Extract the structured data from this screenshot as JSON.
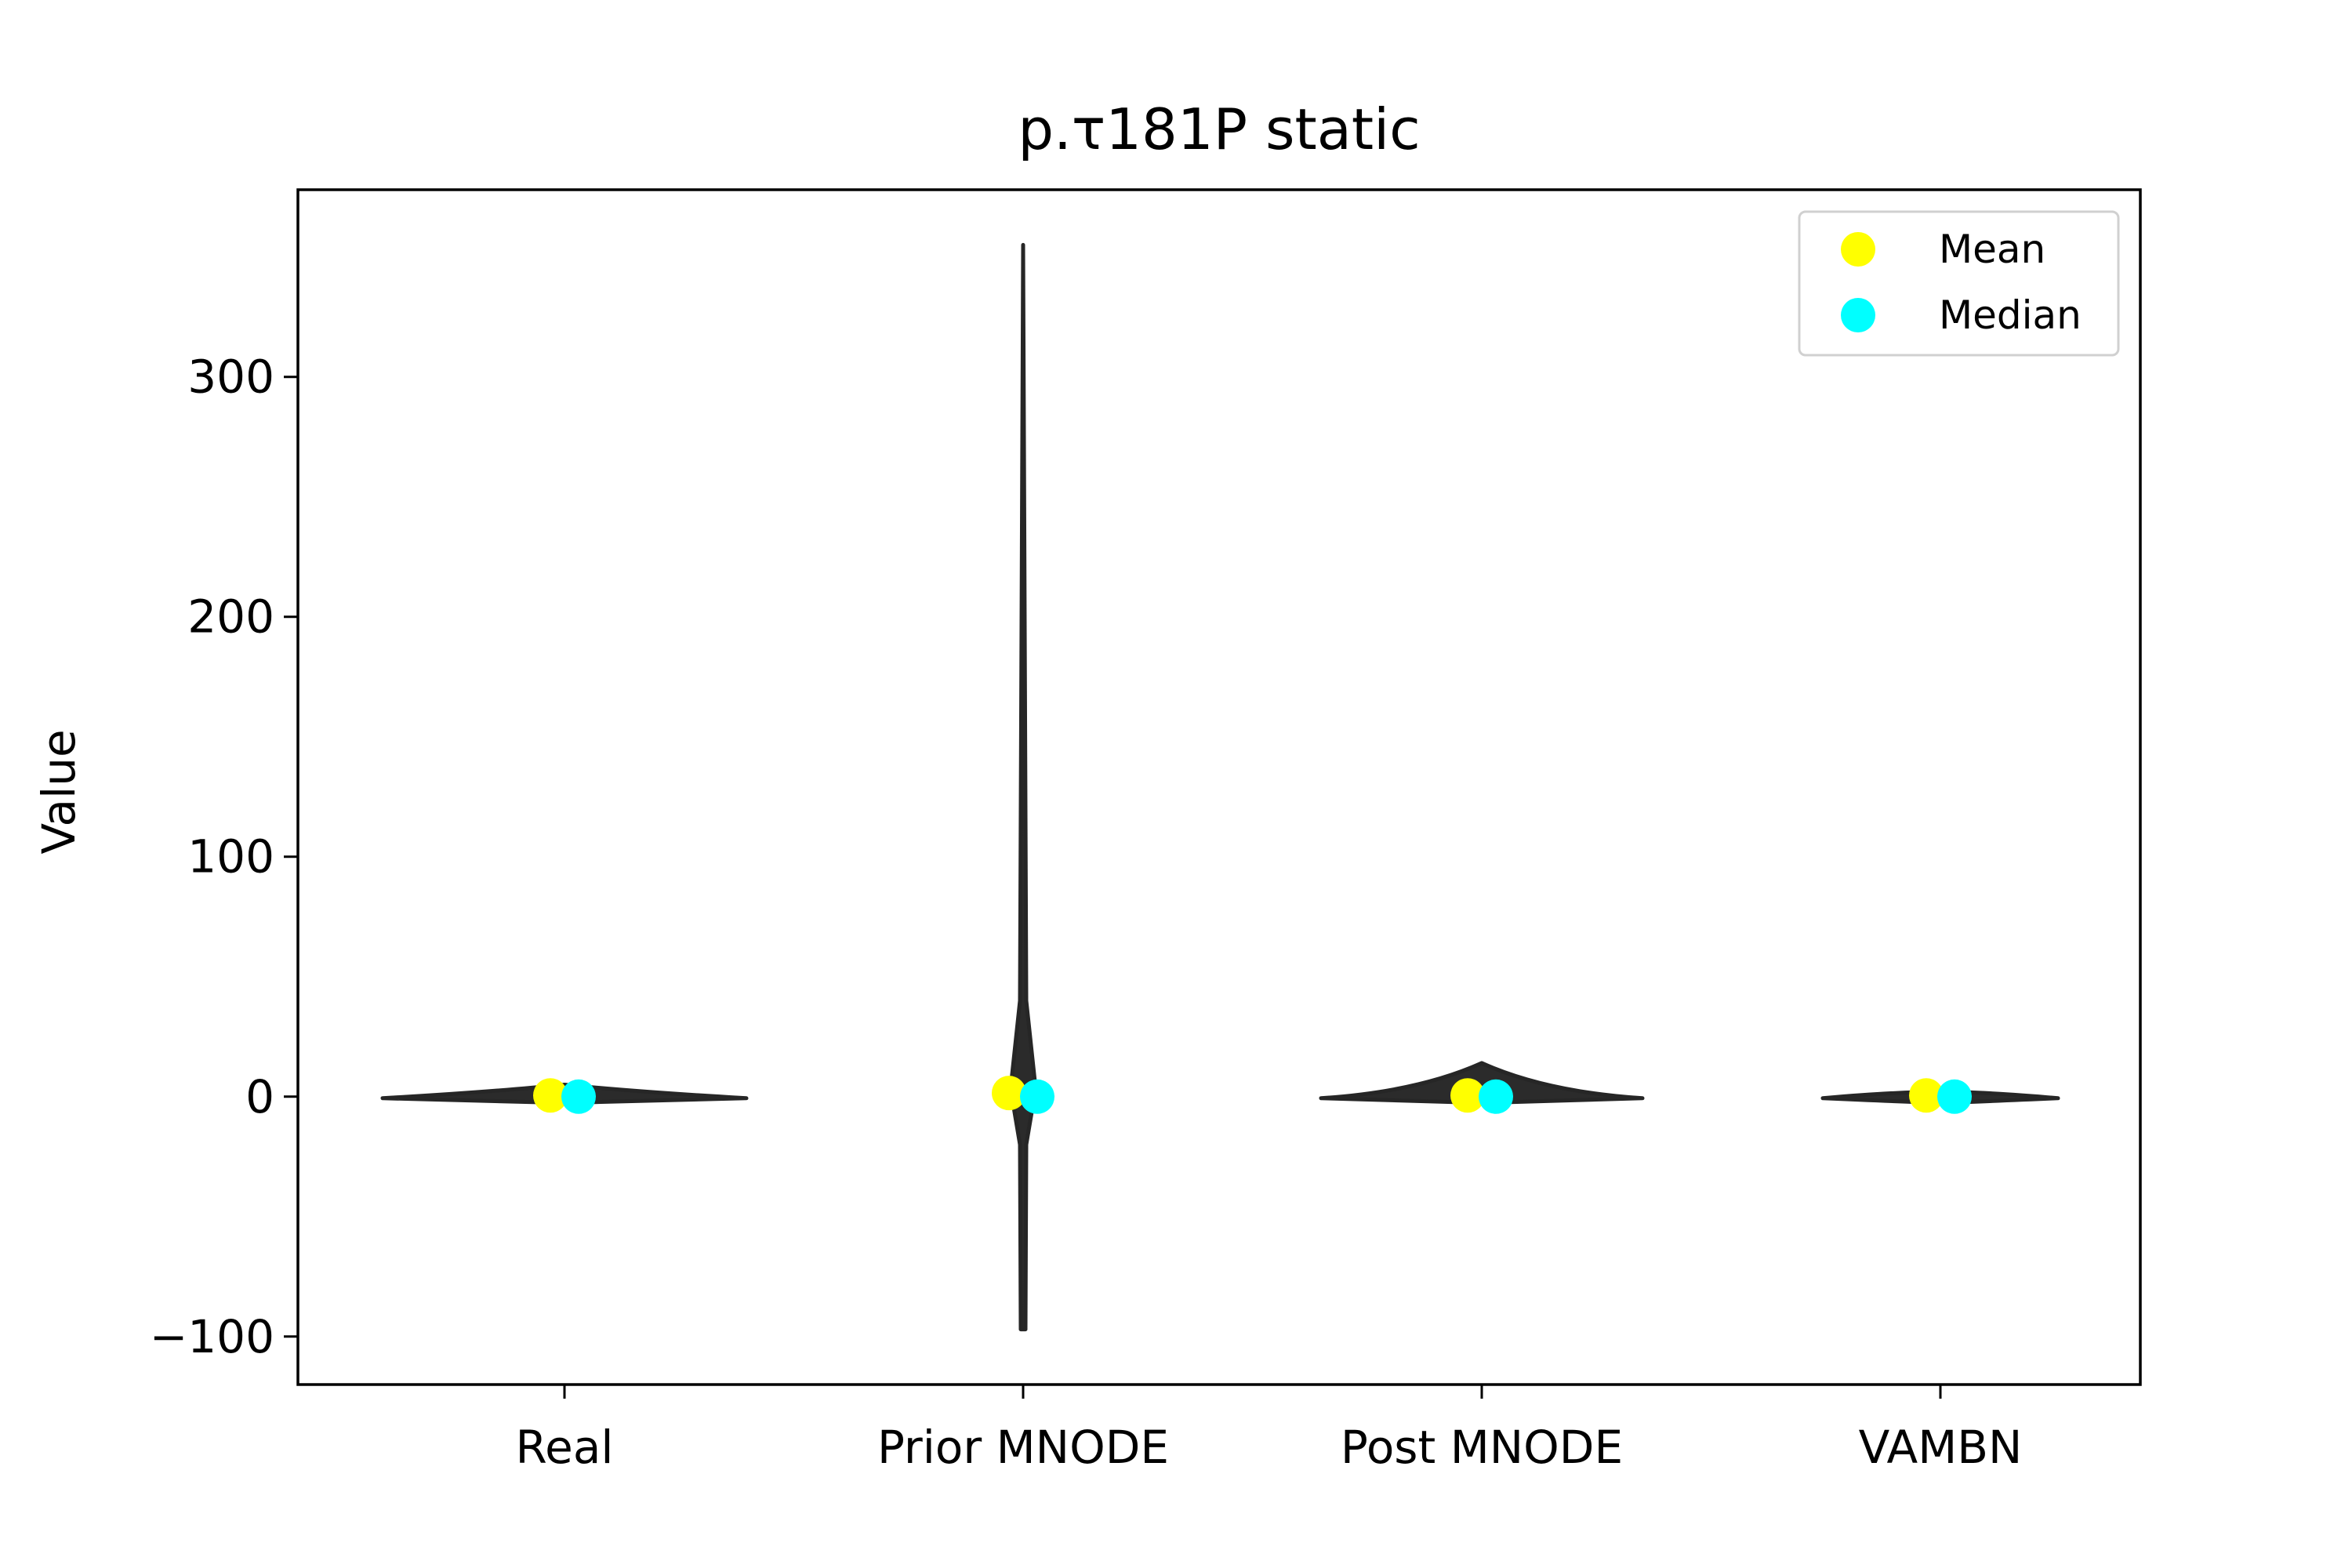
{
  "chart_data": {
    "type": "violin",
    "title": "p.τ181P static",
    "xlabel": "",
    "ylabel": "Value",
    "ylim": [
      -120,
      378
    ],
    "yticks": [
      -100,
      0,
      100,
      200,
      300
    ],
    "ytick_labels": [
      "−100",
      "0",
      "100",
      "200",
      "300"
    ],
    "categories": [
      "Real",
      "Prior MNODE",
      "Post MNODE",
      "VAMBN"
    ],
    "violins": [
      {
        "category": "Real",
        "min": -1,
        "max": 5,
        "mean": 0.5,
        "median": 0
      },
      {
        "category": "Prior MNODE",
        "min": -97,
        "max": 355,
        "mean": 1.5,
        "median": 0
      },
      {
        "category": "Post MNODE",
        "min": -1,
        "max": 14,
        "mean": 0.5,
        "median": 0
      },
      {
        "category": "VAMBN",
        "min": -1,
        "max": 2,
        "mean": 0.5,
        "median": 0
      }
    ],
    "legend": {
      "position": "top-right",
      "entries": [
        {
          "label": "Mean",
          "color": "#ffff00"
        },
        {
          "label": "Median",
          "color": "#00ffff"
        }
      ]
    },
    "grid": false
  }
}
